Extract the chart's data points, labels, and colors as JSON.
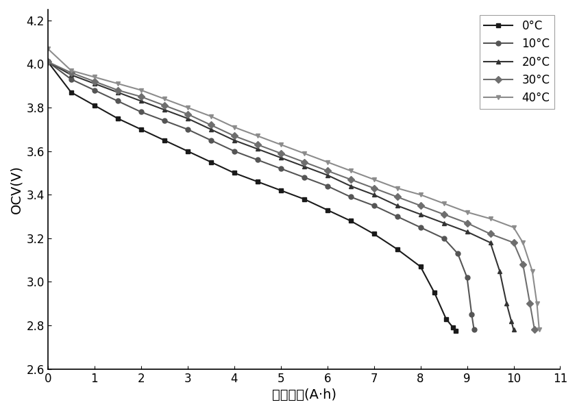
{
  "title": "",
  "xlabel": "电池容量(A·h)",
  "ylabel": "OCV(V)",
  "xlim": [
    0,
    11
  ],
  "ylim": [
    2.6,
    4.25
  ],
  "xticks": [
    0,
    1,
    2,
    3,
    4,
    5,
    6,
    7,
    8,
    9,
    10,
    11
  ],
  "yticks": [
    2.6,
    2.8,
    3.0,
    3.2,
    3.4,
    3.6,
    3.8,
    4.0,
    4.2
  ],
  "series": [
    {
      "label": "0°C",
      "color": "#1a1a1a",
      "marker": "s",
      "markersize": 5,
      "markevery": 1,
      "linewidth": 1.5,
      "x": [
        0,
        0.5,
        1.0,
        1.5,
        2.0,
        2.5,
        3.0,
        3.5,
        4.0,
        4.5,
        5.0,
        5.5,
        6.0,
        6.5,
        7.0,
        7.5,
        8.0,
        8.3,
        8.55,
        8.7,
        8.75
      ],
      "y": [
        4.01,
        3.87,
        3.81,
        3.75,
        3.7,
        3.65,
        3.6,
        3.55,
        3.5,
        3.46,
        3.42,
        3.38,
        3.33,
        3.28,
        3.22,
        3.15,
        3.07,
        2.95,
        2.83,
        2.79,
        2.775
      ]
    },
    {
      "label": "10°C",
      "color": "#555555",
      "marker": "o",
      "markersize": 5,
      "markevery": 1,
      "linewidth": 1.5,
      "x": [
        0,
        0.5,
        1.0,
        1.5,
        2.0,
        2.5,
        3.0,
        3.5,
        4.0,
        4.5,
        5.0,
        5.5,
        6.0,
        6.5,
        7.0,
        7.5,
        8.0,
        8.5,
        8.8,
        9.0,
        9.1,
        9.15
      ],
      "y": [
        4.01,
        3.93,
        3.88,
        3.83,
        3.78,
        3.74,
        3.7,
        3.65,
        3.6,
        3.56,
        3.52,
        3.48,
        3.44,
        3.39,
        3.35,
        3.3,
        3.25,
        3.2,
        3.13,
        3.02,
        2.85,
        2.78
      ]
    },
    {
      "label": "20°C",
      "color": "#333333",
      "marker": "^",
      "markersize": 5,
      "markevery": 1,
      "linewidth": 1.5,
      "x": [
        0,
        0.5,
        1.0,
        1.5,
        2.0,
        2.5,
        3.0,
        3.5,
        4.0,
        4.5,
        5.0,
        5.5,
        6.0,
        6.5,
        7.0,
        7.5,
        8.0,
        8.5,
        9.0,
        9.5,
        9.7,
        9.85,
        9.95,
        10.0
      ],
      "y": [
        4.01,
        3.95,
        3.91,
        3.87,
        3.83,
        3.79,
        3.75,
        3.7,
        3.65,
        3.61,
        3.57,
        3.53,
        3.49,
        3.44,
        3.4,
        3.35,
        3.31,
        3.27,
        3.23,
        3.18,
        3.05,
        2.9,
        2.82,
        2.78
      ]
    },
    {
      "label": "30°C",
      "color": "#6e6e6e",
      "marker": "D",
      "markersize": 5,
      "markevery": 1,
      "linewidth": 1.5,
      "x": [
        0,
        0.5,
        1.0,
        1.5,
        2.0,
        2.5,
        3.0,
        3.5,
        4.0,
        4.5,
        5.0,
        5.5,
        6.0,
        6.5,
        7.0,
        7.5,
        8.0,
        8.5,
        9.0,
        9.5,
        10.0,
        10.2,
        10.35,
        10.45
      ],
      "y": [
        4.01,
        3.96,
        3.92,
        3.88,
        3.85,
        3.81,
        3.77,
        3.72,
        3.67,
        3.63,
        3.59,
        3.55,
        3.51,
        3.47,
        3.43,
        3.39,
        3.35,
        3.31,
        3.27,
        3.22,
        3.18,
        3.08,
        2.9,
        2.78
      ]
    },
    {
      "label": "40°C",
      "color": "#8c8c8c",
      "marker": "v",
      "markersize": 5,
      "markevery": 1,
      "linewidth": 1.5,
      "x": [
        0,
        0.5,
        1.0,
        1.5,
        2.0,
        2.5,
        3.0,
        3.5,
        4.0,
        4.5,
        5.0,
        5.5,
        6.0,
        6.5,
        7.0,
        7.5,
        8.0,
        8.5,
        9.0,
        9.5,
        10.0,
        10.2,
        10.4,
        10.5,
        10.55
      ],
      "y": [
        4.07,
        3.97,
        3.94,
        3.91,
        3.88,
        3.84,
        3.8,
        3.76,
        3.71,
        3.67,
        3.63,
        3.59,
        3.55,
        3.51,
        3.47,
        3.43,
        3.4,
        3.36,
        3.32,
        3.29,
        3.25,
        3.18,
        3.05,
        2.9,
        2.78
      ]
    }
  ]
}
